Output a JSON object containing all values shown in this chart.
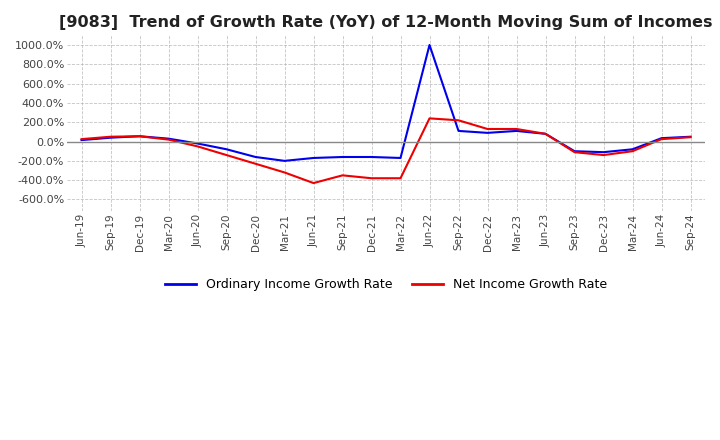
{
  "title": "[9083]  Trend of Growth Rate (YoY) of 12-Month Moving Sum of Incomes",
  "title_fontsize": 11.5,
  "ylim": [
    -720,
    1100
  ],
  "yticks": [
    -600,
    -400,
    -200,
    0,
    200,
    400,
    600,
    800,
    1000
  ],
  "background_color": "#ffffff",
  "plot_bg_color": "#ffffff",
  "grid_color": "#aaaaaa",
  "legend_labels": [
    "Ordinary Income Growth Rate",
    "Net Income Growth Rate"
  ],
  "line_colors": [
    "#0000ee",
    "#ee0000"
  ],
  "dates": [
    "Jun-19",
    "Sep-19",
    "Dec-19",
    "Mar-20",
    "Jun-20",
    "Sep-20",
    "Dec-20",
    "Mar-21",
    "Jun-21",
    "Sep-21",
    "Dec-21",
    "Mar-22",
    "Jun-22",
    "Sep-22",
    "Dec-22",
    "Mar-23",
    "Jun-23",
    "Sep-23",
    "Dec-23",
    "Mar-24",
    "Jun-24",
    "Sep-24"
  ],
  "ordinary_income_gr": [
    15,
    40,
    55,
    30,
    -20,
    -80,
    -160,
    -200,
    -170,
    -160,
    -160,
    -170,
    1000,
    110,
    90,
    110,
    80,
    -100,
    -110,
    -80,
    35,
    50
  ],
  "net_income_gr": [
    25,
    50,
    55,
    20,
    -50,
    -140,
    -230,
    -320,
    -430,
    -350,
    -380,
    -380,
    240,
    220,
    130,
    130,
    80,
    -110,
    -140,
    -100,
    25,
    45
  ]
}
